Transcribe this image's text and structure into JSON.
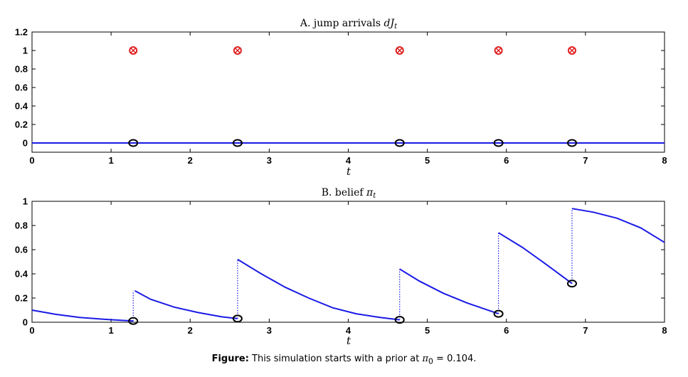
{
  "chart_data": [
    {
      "id": "A",
      "type": "scatter",
      "title_text": "A. jump arrivals ",
      "title_math": "dJ",
      "title_sub": "t",
      "xlabel": "t",
      "xlim": [
        0,
        8
      ],
      "ylim": [
        -0.1,
        1.2
      ],
      "xticks": [
        0,
        1,
        2,
        3,
        4,
        5,
        6,
        7,
        8
      ],
      "xtick_labels": [
        "0",
        "1",
        "2",
        "3",
        "4",
        "5",
        "6",
        "7",
        "8"
      ],
      "yticks": [
        0,
        0.2,
        0.4,
        0.6,
        0.8,
        1,
        1.2
      ],
      "ytick_labels": [
        "0",
        "0.2",
        "0.4",
        "0.6",
        "0.8",
        "1",
        "1.2"
      ],
      "baseline": {
        "name": "dJ_t",
        "color": "#1a1ae6",
        "x": [
          0,
          8
        ],
        "y": [
          0,
          0
        ]
      },
      "jump_times": [
        1.28,
        2.6,
        4.65,
        5.9,
        6.83
      ],
      "jump_markers": {
        "y": 1,
        "color": "#e02020"
      },
      "zero_markers": {
        "y": 0,
        "color": "#000000"
      }
    },
    {
      "id": "B",
      "type": "line",
      "title_text": "B. belief ",
      "title_math": "π",
      "title_sub": "t",
      "xlabel": "t",
      "xlim": [
        0,
        8
      ],
      "ylim": [
        0,
        1
      ],
      "xticks": [
        0,
        1,
        2,
        3,
        4,
        5,
        6,
        7,
        8
      ],
      "xtick_labels": [
        "0",
        "1",
        "2",
        "3",
        "4",
        "5",
        "6",
        "7",
        "8"
      ],
      "yticks": [
        0,
        0.2,
        0.4,
        0.6,
        0.8,
        1
      ],
      "ytick_labels": [
        "0",
        "0.2",
        "0.4",
        "0.6",
        "0.8",
        "1"
      ],
      "color": "#1a1ae6",
      "segments": [
        {
          "x": [
            0,
            0.3,
            0.6,
            0.9,
            1.1,
            1.28
          ],
          "y": [
            0.1,
            0.065,
            0.04,
            0.025,
            0.017,
            0.01
          ]
        },
        {
          "x": [
            1.3,
            1.5,
            1.8,
            2.1,
            2.4,
            2.6
          ],
          "y": [
            0.26,
            0.19,
            0.125,
            0.08,
            0.045,
            0.03
          ]
        },
        {
          "x": [
            2.6,
            2.9,
            3.2,
            3.5,
            3.8,
            4.1,
            4.4,
            4.65
          ],
          "y": [
            0.52,
            0.4,
            0.29,
            0.2,
            0.12,
            0.07,
            0.04,
            0.02
          ]
        },
        {
          "x": [
            4.65,
            4.9,
            5.2,
            5.5,
            5.9
          ],
          "y": [
            0.44,
            0.34,
            0.24,
            0.16,
            0.07
          ]
        },
        {
          "x": [
            5.9,
            6.2,
            6.5,
            6.83
          ],
          "y": [
            0.74,
            0.62,
            0.48,
            0.32
          ]
        },
        {
          "x": [
            6.83,
            7.1,
            7.4,
            7.7,
            8.0
          ],
          "y": [
            0.94,
            0.91,
            0.86,
            0.78,
            0.66
          ]
        }
      ],
      "jumps": [
        {
          "x": 1.28,
          "from": 0.01,
          "to": 0.26
        },
        {
          "x": 2.6,
          "from": 0.03,
          "to": 0.52
        },
        {
          "x": 4.65,
          "from": 0.02,
          "to": 0.44
        },
        {
          "x": 5.9,
          "from": 0.07,
          "to": 0.74
        },
        {
          "x": 6.83,
          "from": 0.32,
          "to": 0.94
        }
      ],
      "pre_jump_markers": {
        "color": "#000000"
      }
    }
  ],
  "caption": {
    "label": "Figure:",
    "text": " This simulation starts with a prior at ",
    "math_symbol": "π",
    "math_sub": "0",
    "math_eq": " = 0.104."
  }
}
